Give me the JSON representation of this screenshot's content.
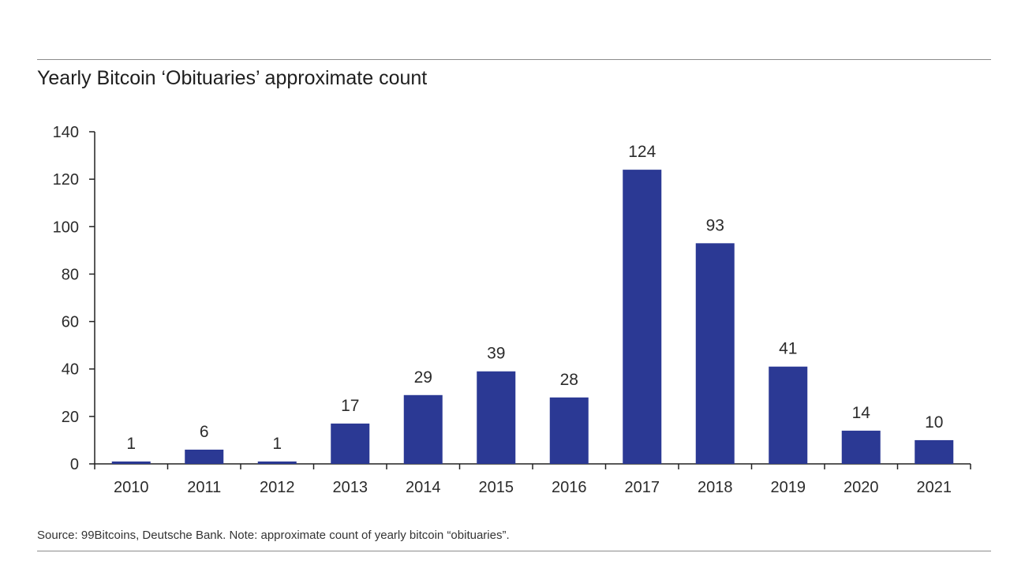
{
  "title": "Yearly Bitcoin ‘Obituaries’ approximate count",
  "source_note": "Source: 99Bitcoins, Deutsche Bank. Note: approximate count of yearly bitcoin “obituaries”.",
  "colors": {
    "bar": "#2b3994",
    "axis": "#222222",
    "rule": "#8c8c8c"
  },
  "chart_data": {
    "type": "bar",
    "title": "Yearly Bitcoin ‘Obituaries’ approximate count",
    "xlabel": "",
    "ylabel": "",
    "categories": [
      "2010",
      "2011",
      "2012",
      "2013",
      "2014",
      "2015",
      "2016",
      "2017",
      "2018",
      "2019",
      "2020",
      "2021"
    ],
    "values": [
      1,
      6,
      1,
      17,
      29,
      39,
      28,
      124,
      93,
      41,
      14,
      10
    ],
    "ylim": [
      0,
      140
    ],
    "yticks": [
      0,
      20,
      40,
      60,
      80,
      100,
      120,
      140
    ],
    "grid": false,
    "legend": "none",
    "data_labels": true
  }
}
